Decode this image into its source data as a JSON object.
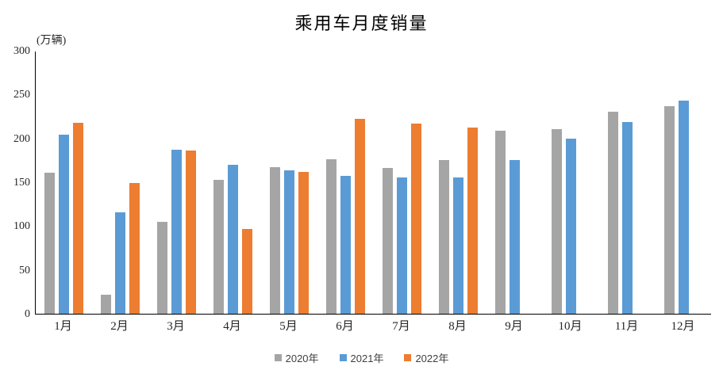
{
  "chart_data": {
    "type": "bar",
    "title": "乘用车月度销量",
    "unit_label": "(万辆)",
    "xlabel": "",
    "ylabel": "万辆",
    "ylim": [
      0,
      300
    ],
    "yticks": [
      0,
      50,
      100,
      150,
      200,
      250,
      300
    ],
    "grid": false,
    "legend_position": "bottom",
    "categories": [
      "1月",
      "2月",
      "3月",
      "4月",
      "5月",
      "6月",
      "7月",
      "8月",
      "9月",
      "10月",
      "11月",
      "12月"
    ],
    "series": [
      {
        "name": "2020年",
        "color": "#A5A5A5",
        "values": [
          161,
          22,
          105,
          153,
          167,
          176,
          166,
          175,
          209,
          211,
          230,
          237
        ]
      },
      {
        "name": "2021年",
        "color": "#5B9BD5",
        "values": [
          204,
          116,
          187,
          170,
          164,
          157,
          155,
          155,
          175,
          200,
          219,
          243
        ]
      },
      {
        "name": "2022年",
        "color": "#ED7D31",
        "values": [
          218,
          149,
          186,
          97,
          162,
          222,
          217,
          212,
          null,
          null,
          null,
          null
        ]
      }
    ]
  }
}
